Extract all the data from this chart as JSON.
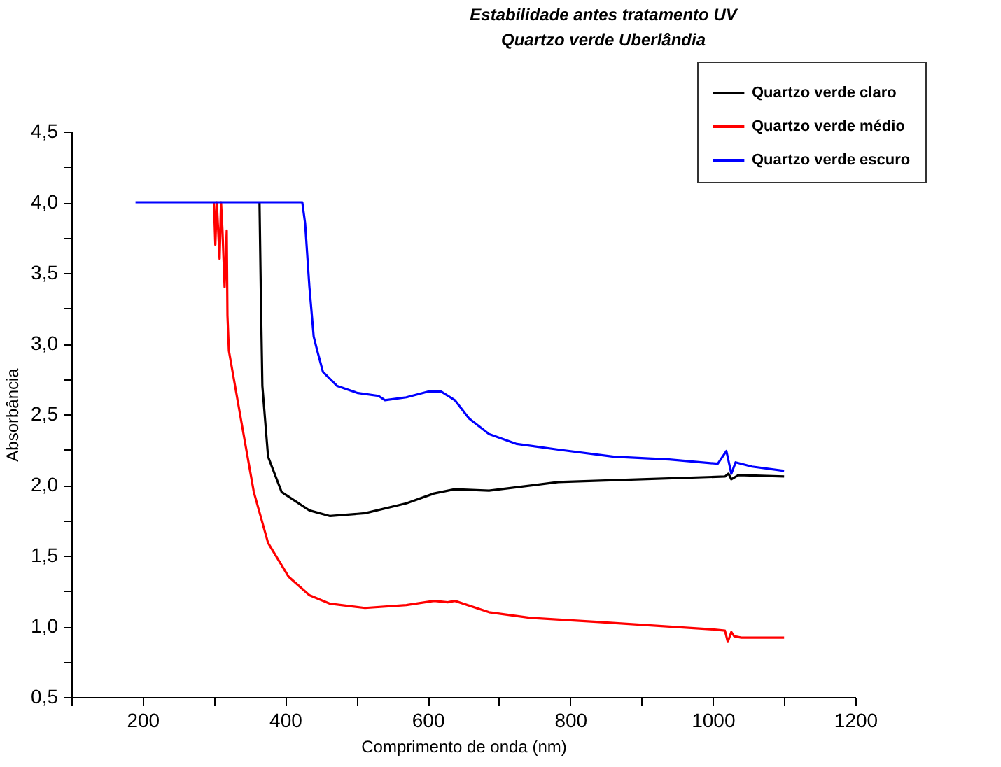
{
  "chart_data": {
    "type": "line",
    "title": "Estabilidade antes tratamento UV",
    "subtitle": "Quartzo verde Uberlândia",
    "xlabel": "Comprimento de onda (nm)",
    "ylabel": "Absorbância",
    "xlim": [
      100,
      1200
    ],
    "xticks": [
      {
        "value": 100,
        "label": null
      },
      200,
      {
        "value": 300,
        "label": null
      },
      400,
      {
        "value": 500,
        "label": null
      },
      600,
      {
        "value": 700,
        "label": null
      },
      800,
      {
        "value": 900,
        "label": null
      },
      1000,
      {
        "value": 1100,
        "label": null
      },
      1200
    ],
    "ylim": [
      0.5,
      4.5
    ],
    "yticks": [
      {
        "value": 0.5,
        "label": "0,5"
      },
      {
        "value": 0.75,
        "label": null
      },
      {
        "value": 1,
        "label": "1,0"
      },
      {
        "value": 1.25,
        "label": null
      },
      {
        "value": 1.5,
        "label": "1,5"
      },
      {
        "value": 1.75,
        "label": null
      },
      {
        "value": 2,
        "label": "2,0"
      },
      {
        "value": 2.25,
        "label": null
      },
      {
        "value": 2.5,
        "label": "2,5"
      },
      {
        "value": 2.75,
        "label": null
      },
      {
        "value": 3,
        "label": "3,0"
      },
      {
        "value": 3.25,
        "label": null
      },
      {
        "value": 3.5,
        "label": "3,5"
      },
      {
        "value": 3.75,
        "label": null
      },
      {
        "value": 4,
        "label": "4,0"
      },
      {
        "value": 4.25,
        "label": null
      },
      {
        "value": 4.5,
        "label": "4,5"
      }
    ],
    "grid": false,
    "legend": "top right",
    "marker": "none",
    "line_style": "solid",
    "series": [
      {
        "name": "Quartzo verde claro",
        "color": "#000000",
        "x": [
          364,
          366,
          368,
          376,
          395,
          434,
          463,
          512,
          570,
          609,
          638,
          686,
          783,
          900,
          1017,
          1022,
          1026,
          1036,
          1100
        ],
        "values": [
          4.0,
          3.3,
          2.7,
          2.2,
          1.95,
          1.82,
          1.78,
          1.8,
          1.87,
          1.94,
          1.97,
          1.96,
          2.02,
          2.04,
          2.06,
          2.08,
          2.04,
          2.07,
          2.06
        ]
      },
      {
        "name": "Quartzo verde médio",
        "color": "#ff0000",
        "x": [
          300,
          302,
          304,
          308,
          310,
          312,
          315,
          318,
          319,
          321,
          337,
          356,
          376,
          405,
          434,
          463,
          512,
          570,
          609,
          628,
          638,
          686,
          744,
          841,
          996,
          1017,
          1021,
          1026,
          1030,
          1040,
          1100
        ],
        "values": [
          4.0,
          3.7,
          4.0,
          3.6,
          4.0,
          3.8,
          3.4,
          3.8,
          3.2,
          2.95,
          2.49,
          1.95,
          1.59,
          1.35,
          1.22,
          1.16,
          1.13,
          1.15,
          1.18,
          1.17,
          1.18,
          1.1,
          1.06,
          1.03,
          0.98,
          0.97,
          0.89,
          0.96,
          0.93,
          0.92,
          0.92
        ]
      },
      {
        "name": "Quartzo verde escuro",
        "color": "#0000ff",
        "x": [
          190,
          424,
          428,
          434,
          440,
          445,
          453,
          473,
          502,
          531,
          540,
          570,
          600,
          619,
          638,
          658,
          686,
          725,
          783,
          861,
          939,
          1007,
          1019,
          1026,
          1032,
          1055,
          1100
        ],
        "values": [
          4.0,
          4.0,
          3.85,
          3.4,
          3.05,
          2.95,
          2.8,
          2.7,
          2.65,
          2.63,
          2.6,
          2.62,
          2.66,
          2.66,
          2.6,
          2.47,
          2.36,
          2.29,
          2.25,
          2.2,
          2.18,
          2.15,
          2.24,
          2.08,
          2.16,
          2.13,
          2.1
        ]
      }
    ]
  }
}
